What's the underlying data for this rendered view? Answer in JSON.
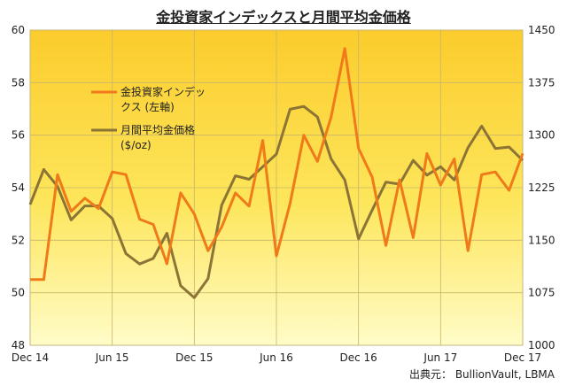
{
  "title": "金投資家インデックスと月間平均金価格",
  "source": "出典元： BullionVault, LBMA",
  "chart_data": {
    "type": "line",
    "title": "金投資家インデックスと月間平均金価格",
    "x_tick_labels": [
      "Dec 14",
      "Jun 15",
      "Dec 15",
      "Jun 16",
      "Dec 16",
      "Jun 17",
      "Dec 17"
    ],
    "x_count": 37,
    "y_left": {
      "ylim": [
        48,
        60
      ],
      "ticks": [
        48,
        50,
        52,
        54,
        56,
        58,
        60
      ]
    },
    "y_right": {
      "ylim": [
        1000,
        1450
      ],
      "ticks": [
        1000,
        1075,
        1150,
        1225,
        1300,
        1375,
        1450
      ]
    },
    "grid": true,
    "legend_position": "top-left",
    "series": [
      {
        "name": "金投資家インデックス (左軸)",
        "legend_line1": "金投資家インデッ",
        "legend_line2": "クス (左軸)",
        "axis": "left",
        "color": "#f07a1a",
        "values": [
          50.5,
          50.5,
          54.5,
          53.1,
          53.6,
          53.2,
          54.6,
          54.5,
          52.8,
          52.6,
          51.1,
          53.8,
          53.0,
          51.6,
          52.5,
          53.8,
          53.3,
          55.8,
          51.4,
          53.4,
          56.0,
          55.0,
          56.7,
          59.3,
          55.5,
          54.4,
          51.8,
          54.3,
          52.1,
          55.3,
          54.1,
          55.1,
          51.6,
          54.5,
          54.6,
          53.9,
          55.3
        ]
      },
      {
        "name": "月間平均金価格 ($/oz)",
        "legend_line1": "月間平均金価格",
        "legend_line2": "($/oz)",
        "axis": "right",
        "color": "#8b7436",
        "values": [
          1201,
          1251,
          1227,
          1179,
          1199,
          1199,
          1181,
          1131,
          1116,
          1124,
          1160,
          1085,
          1068,
          1095,
          1200,
          1242,
          1237,
          1255,
          1273,
          1337,
          1341,
          1326,
          1266,
          1236,
          1152,
          1193,
          1233,
          1230,
          1264,
          1243,
          1255,
          1236,
          1282,
          1313,
          1281,
          1283,
          1264
        ]
      }
    ]
  }
}
